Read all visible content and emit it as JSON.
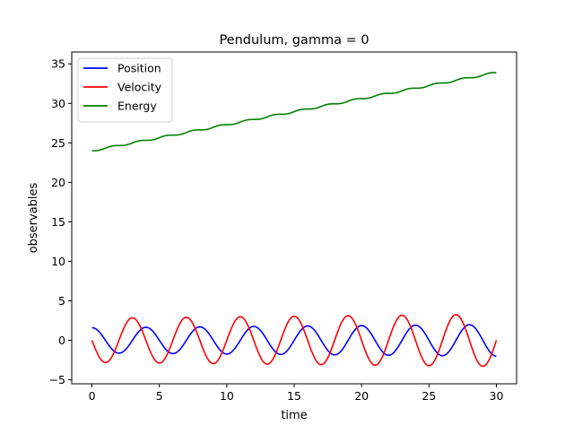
{
  "chart_data": {
    "type": "line",
    "title": "Pendulum, gamma = 0",
    "xlabel": "time",
    "ylabel": "observables",
    "xlim": [
      -1.5,
      31.5
    ],
    "ylim": [
      -5.5,
      36.5
    ],
    "xticks": [
      0,
      5,
      10,
      15,
      20,
      25,
      30
    ],
    "yticks": [
      -5,
      0,
      5,
      10,
      15,
      20,
      25,
      30,
      35
    ],
    "grid": false,
    "legend_position": "upper-left",
    "x_range": [
      0,
      30
    ],
    "series": [
      {
        "name": "Position",
        "color": "#0000ff",
        "amplitude_start": 1.6,
        "amplitude_end": 2.0,
        "period": 4.0,
        "phase_at_zero": "max",
        "start_value": 1.6,
        "end_value": -1.2
      },
      {
        "name": "Velocity",
        "color": "#ff0000",
        "amplitude_start": 2.8,
        "amplitude_end": 3.3,
        "period": 4.0,
        "phase_at_zero": "zero-descending",
        "start_value": 0.0,
        "end_value": 2.6
      },
      {
        "name": "Energy",
        "color": "#008000",
        "start_value": 24.0,
        "end_value": 33.9,
        "step_period": 2.0,
        "shape": "staircase"
      }
    ]
  }
}
